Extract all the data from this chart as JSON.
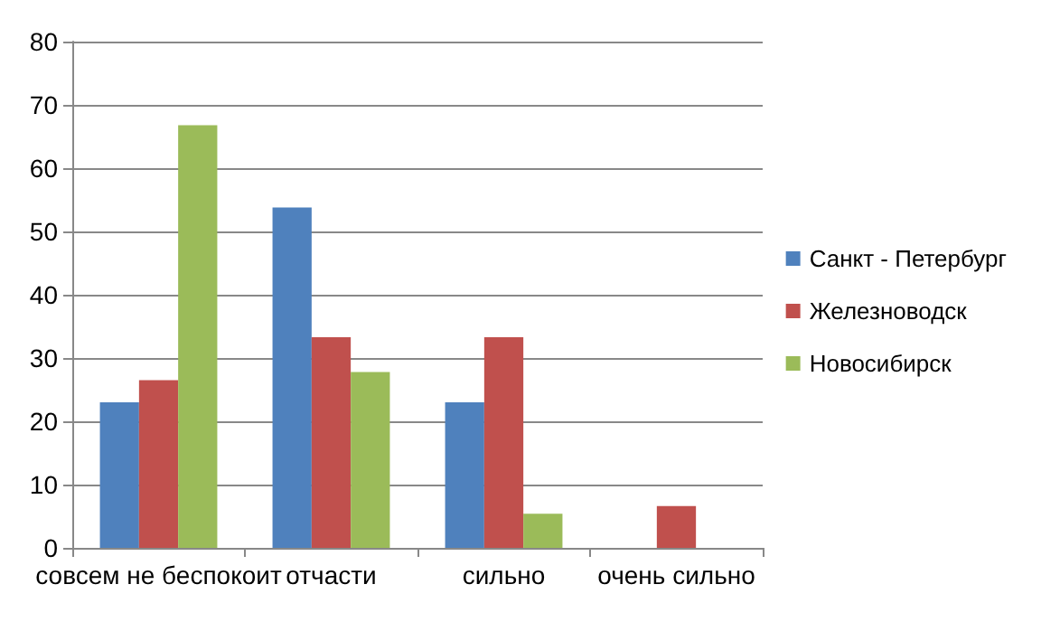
{
  "chart_data": {
    "type": "bar",
    "categories": [
      "совсем не беспокоит",
      "отчасти",
      "сильно",
      "очень сильно"
    ],
    "series": [
      {
        "name": "Санкт - Петербург",
        "color": "#4f81bd",
        "values": [
          23,
          53.8,
          23,
          0
        ]
      },
      {
        "name": "Железноводск",
        "color": "#c0504d",
        "values": [
          26.5,
          33.3,
          33.3,
          6.6
        ]
      },
      {
        "name": "Новосибирск",
        "color": "#9bbb59",
        "values": [
          66.8,
          27.8,
          5.4,
          0
        ]
      }
    ],
    "ylim": [
      0,
      80
    ],
    "yticks": [
      0,
      10,
      20,
      30,
      40,
      50,
      60,
      70,
      80
    ],
    "grid": "y",
    "legend": "right"
  }
}
